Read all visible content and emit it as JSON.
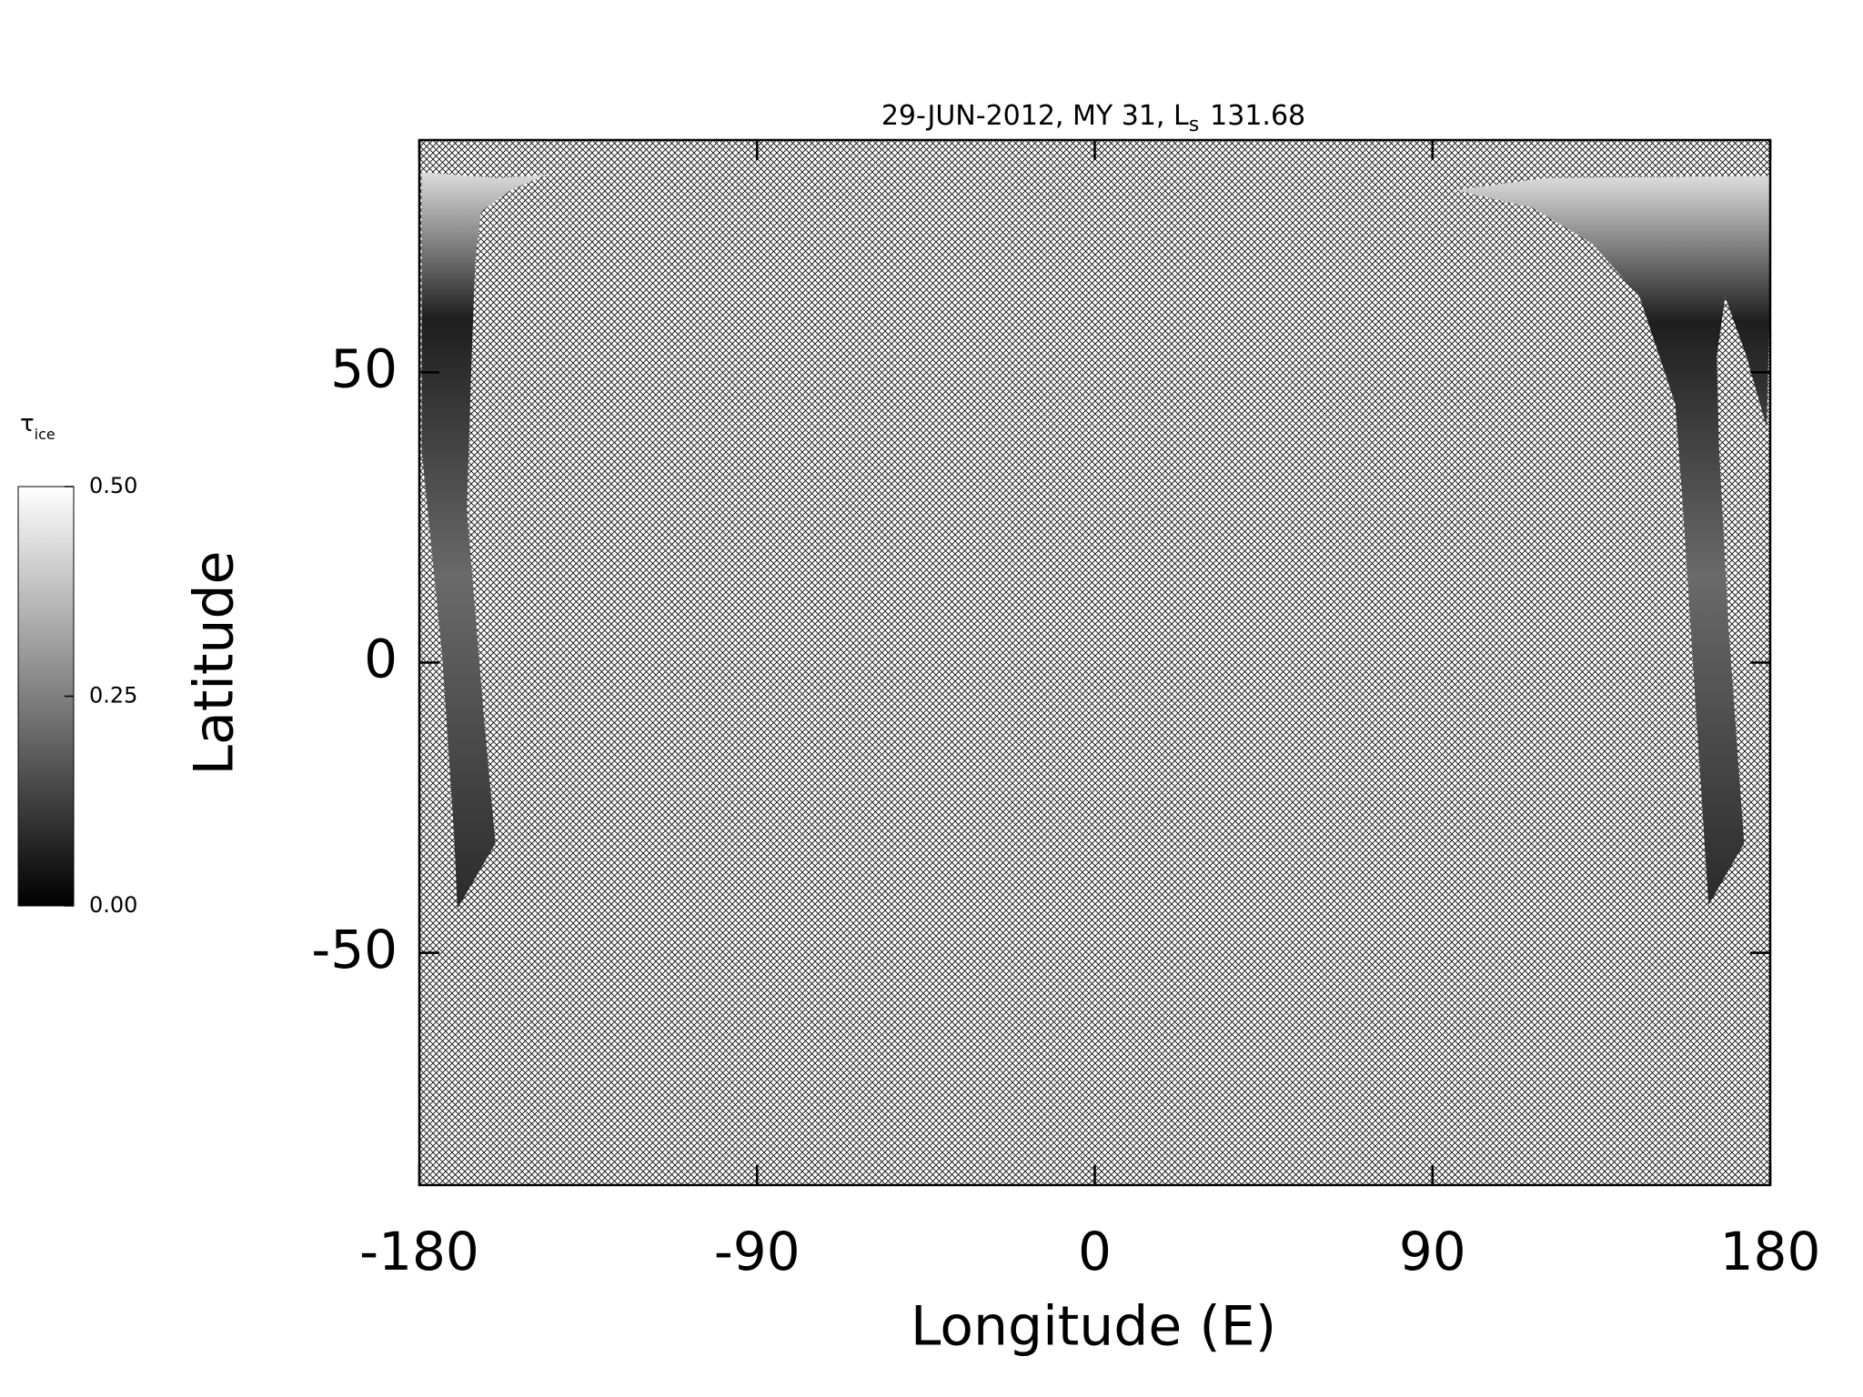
{
  "chart_data": {
    "type": "map",
    "title": "29-JUN-2012, MY 31,  L",
    "title_subscript": "s",
    "title_suffix": "131.68",
    "x_label": "Longitude (E)",
    "y_label": "Latitude",
    "xlim": [
      -180,
      180
    ],
    "xticks": [
      -180,
      -90,
      0,
      90,
      180
    ],
    "ylim": [
      -90,
      90
    ],
    "yticks": [
      -50,
      0,
      50
    ],
    "colorbar": {
      "label": "τ",
      "label_subscript": "ice",
      "lim": [
        0,
        0.5
      ],
      "ticks": [
        {
          "value": 0,
          "label": "0.00"
        },
        {
          "value": 0.25,
          "label": "0.25"
        },
        {
          "value": 0.5,
          "label": "0.50"
        }
      ],
      "colors": [
        "#000000",
        "#ffffff"
      ]
    }
  }
}
